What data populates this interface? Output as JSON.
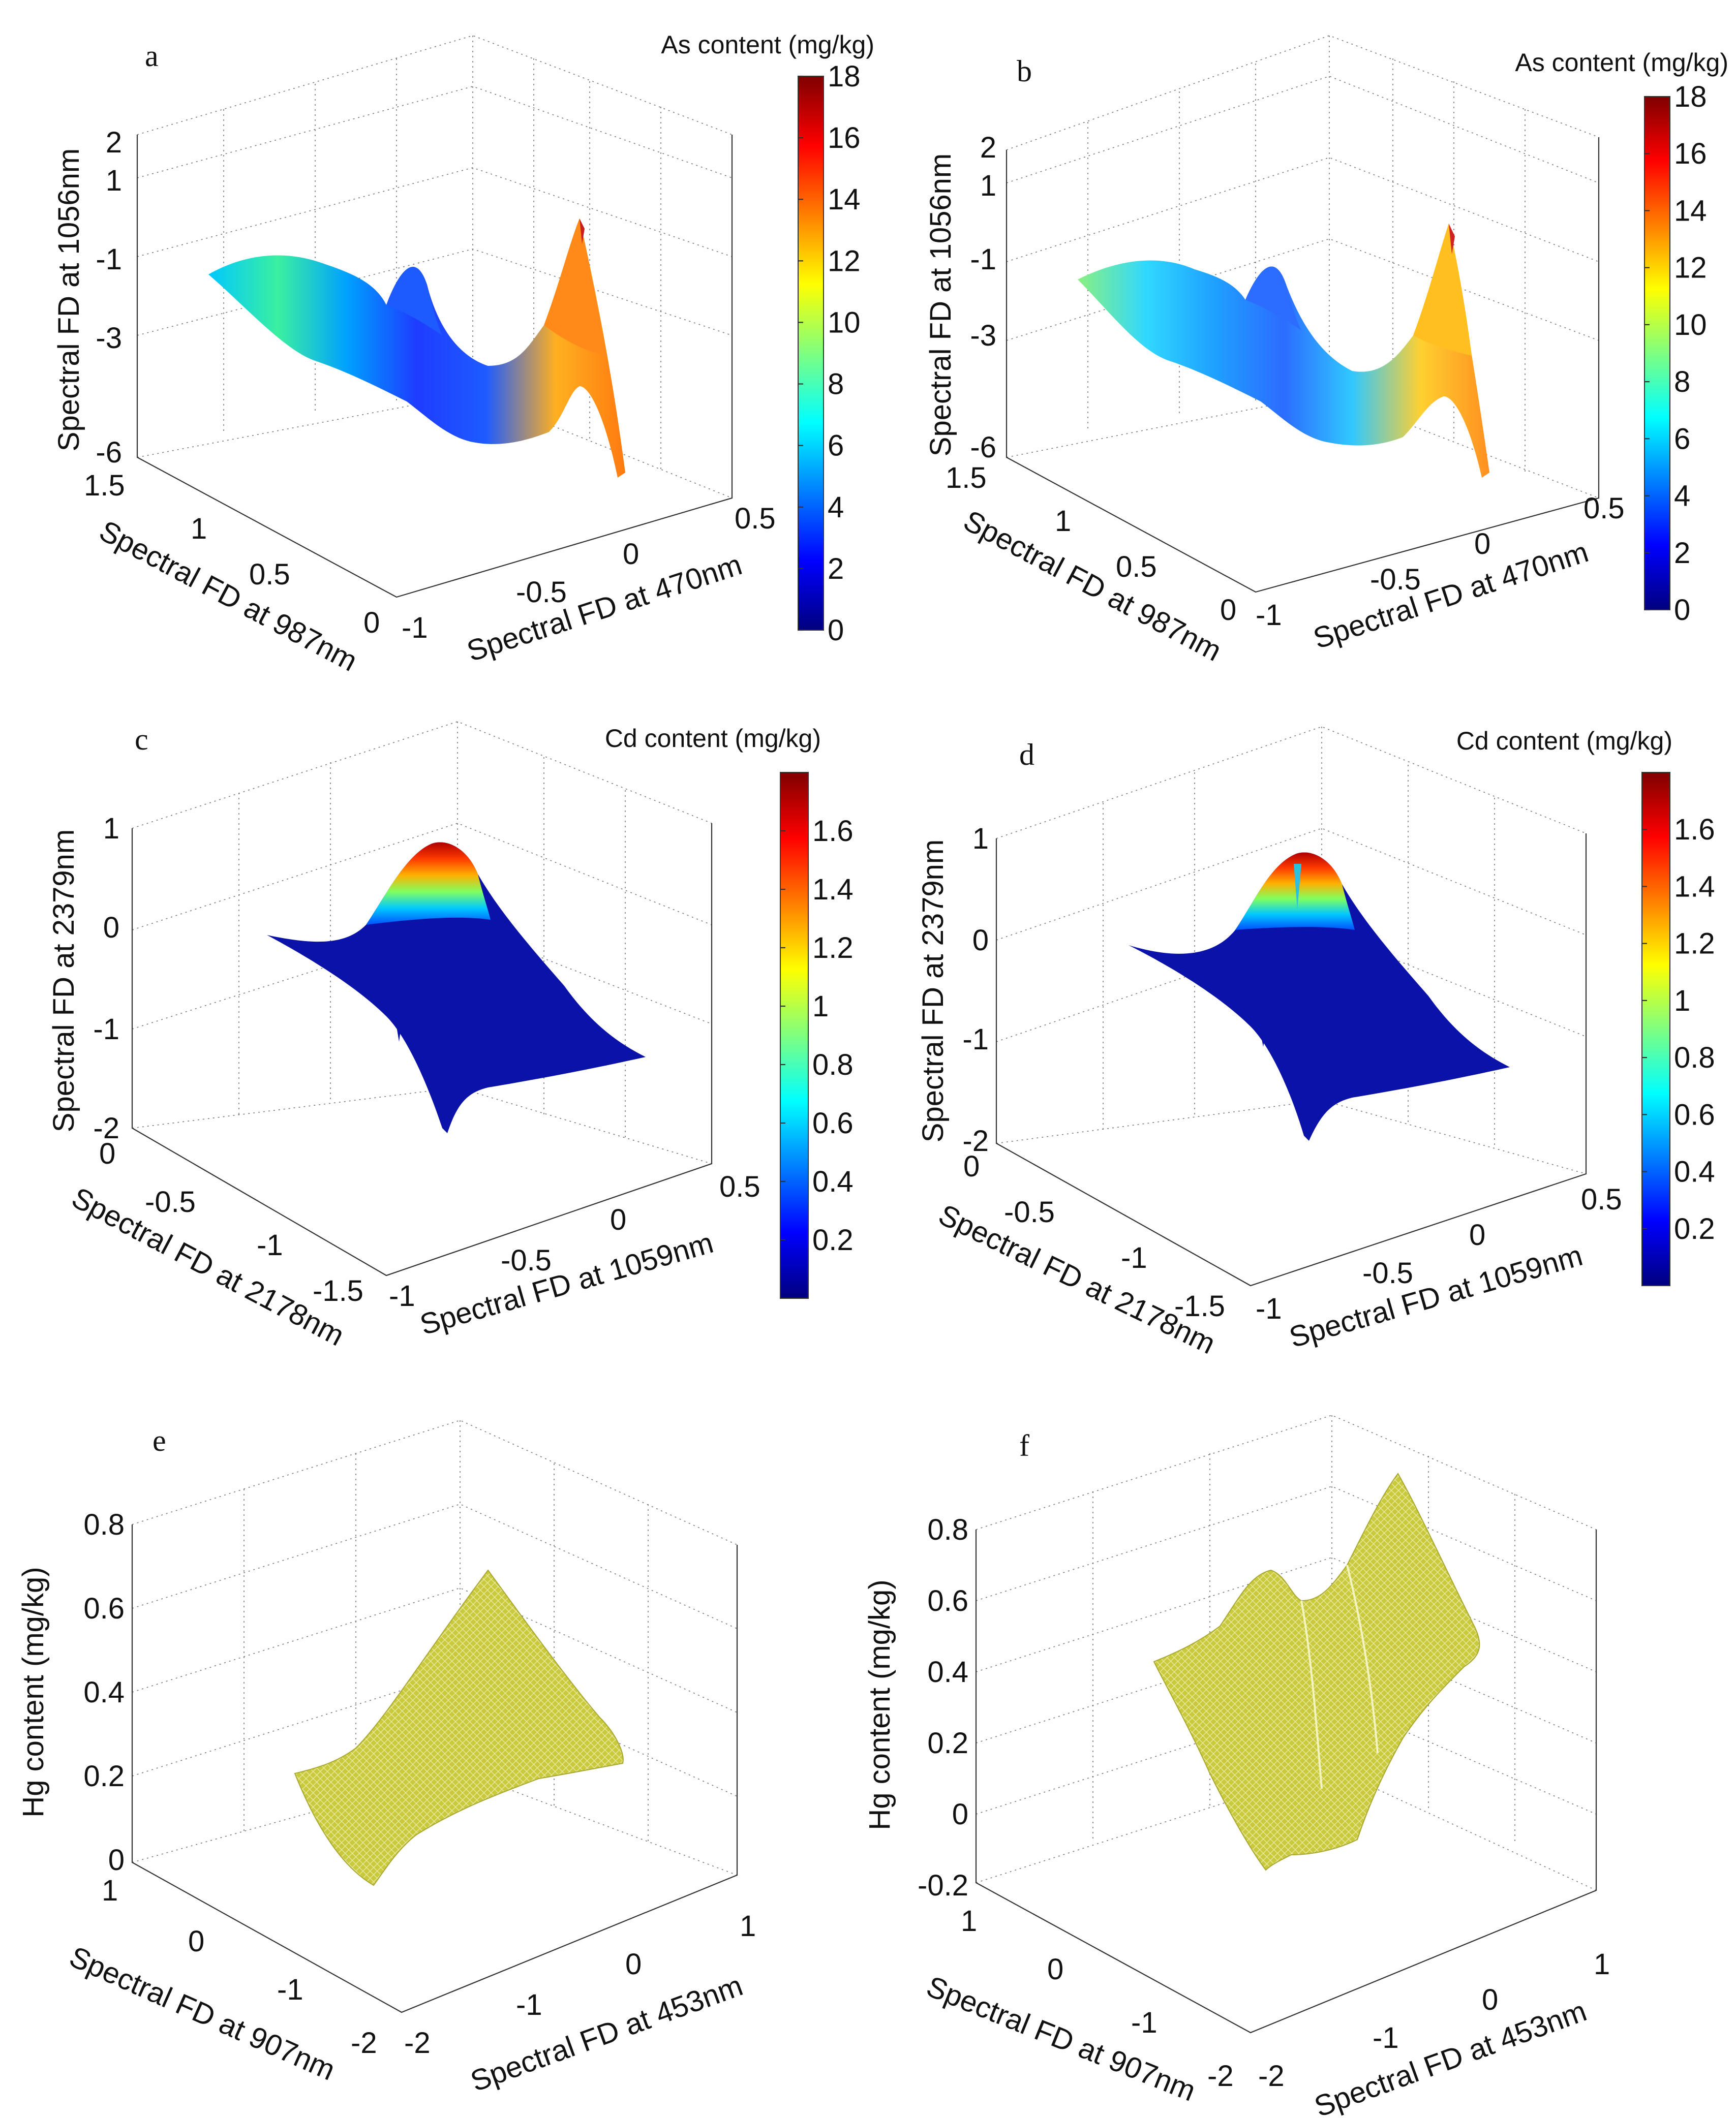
{
  "figure": {
    "description_panels": [
      "a",
      "b",
      "c",
      "d",
      "e",
      "f"
    ]
  },
  "colors": {
    "jet": [
      "#00007f",
      "#0000ff",
      "#007fff",
      "#00ffff",
      "#7fff7f",
      "#ffff00",
      "#ff7f00",
      "#ff0000",
      "#7f0000"
    ],
    "olive_mesh": "#c9c93c",
    "olive_line": "#e8e8a0"
  },
  "chart_data": [
    {
      "panel": "a",
      "type": "surface",
      "colormap": "jet",
      "colorbar_title": "As content (mg/kg)",
      "colorbar_ticks": [
        "0",
        "2",
        "4",
        "6",
        "8",
        "10",
        "12",
        "14",
        "16",
        "18"
      ],
      "clim": [
        0,
        18
      ],
      "xlabel": "Spectral FD at 987nm",
      "x_ticks": [
        "1.5",
        "1",
        "0.5",
        "0"
      ],
      "ylabel": "Spectral FD at 470nm",
      "y_ticks": [
        "-1",
        "-0.5",
        "0",
        "0.5"
      ],
      "zlabel": "Spectral FD at 1056nm",
      "z_ticks": [
        "2",
        "1",
        "-1",
        "-3",
        "-6"
      ],
      "color_quantity": "As content (mg/kg)",
      "peak_value": 17
    },
    {
      "panel": "b",
      "type": "surface",
      "colormap": "jet",
      "colorbar_title": "As content (mg/kg)",
      "colorbar_ticks": [
        "0",
        "2",
        "4",
        "6",
        "8",
        "10",
        "12",
        "14",
        "16",
        "18"
      ],
      "clim": [
        0,
        18
      ],
      "xlabel": "Spectral FD at 987nm",
      "x_ticks": [
        "1.5",
        "1",
        "0.5",
        "0"
      ],
      "ylabel": "Spectral FD at 470nm",
      "y_ticks": [
        "-1",
        "-0.5",
        "0",
        "0.5"
      ],
      "zlabel": "Spectral FD at 1056nm",
      "z_ticks": [
        "2",
        "1",
        "-1",
        "-3",
        "-6"
      ],
      "color_quantity": "As content (mg/kg)",
      "peak_value": 17
    },
    {
      "panel": "c",
      "type": "surface",
      "colormap": "jet",
      "colorbar_title": "Cd content (mg/kg)",
      "colorbar_ticks": [
        "0.2",
        "0.4",
        "0.6",
        "0.8",
        "1",
        "1.2",
        "1.4",
        "1.6"
      ],
      "clim": [
        0,
        1.8
      ],
      "xlabel": "Spectral FD at 2178nm",
      "x_ticks": [
        "0",
        "-0.5",
        "-1",
        "-1.5"
      ],
      "ylabel": "Spectral FD at 1059nm",
      "y_ticks": [
        "-1",
        "-0.5",
        "0",
        "0.5"
      ],
      "zlabel": "Spectral FD at 2379nm",
      "z_ticks": [
        "1",
        "0",
        "-1",
        "-2"
      ],
      "color_quantity": "Cd content (mg/kg)",
      "peak_value": 1.75
    },
    {
      "panel": "d",
      "type": "surface",
      "colormap": "jet",
      "colorbar_title": "Cd content (mg/kg)",
      "colorbar_ticks": [
        "0.2",
        "0.4",
        "0.6",
        "0.8",
        "1",
        "1.2",
        "1.4",
        "1.6"
      ],
      "clim": [
        0,
        1.8
      ],
      "xlabel": "Spectral FD at 2178nm",
      "x_ticks": [
        "0",
        "-0.5",
        "-1",
        "-1.5"
      ],
      "ylabel": "Spectral FD at 1059nm",
      "y_ticks": [
        "-1",
        "-0.5",
        "0",
        "0.5"
      ],
      "zlabel": "Spectral FD at 2379nm",
      "z_ticks": [
        "1",
        "0",
        "-1",
        "-2"
      ],
      "color_quantity": "Cd content (mg/kg)",
      "peak_value": 1.75
    },
    {
      "panel": "e",
      "type": "mesh",
      "xlabel": "Spectral FD at 907nm",
      "x_ticks": [
        "1",
        "0",
        "-1",
        "-2"
      ],
      "ylabel": "Spectral FD at 453nm",
      "y_ticks": [
        "-2",
        "-1",
        "0",
        "1"
      ],
      "zlabel": "Hg content (mg/kg)",
      "z_ticks": [
        "0.8",
        "0.6",
        "0.4",
        "0.2",
        "0"
      ],
      "zlim": [
        0,
        0.8
      ],
      "peak_value": 0.62
    },
    {
      "panel": "f",
      "type": "mesh",
      "xlabel": "Spectral FD at 907nm",
      "x_ticks": [
        "1",
        "0",
        "-1",
        "-2"
      ],
      "ylabel": "Spectral FD at 453nm",
      "y_ticks": [
        "-2",
        "-1",
        "0",
        "1"
      ],
      "zlabel": "Hg content (mg/kg)",
      "z_ticks": [
        "0.8",
        "0.6",
        "0.4",
        "0.2",
        "0",
        "-0.2"
      ],
      "zlim": [
        -0.2,
        0.8
      ],
      "peak_value": 0.85
    }
  ]
}
